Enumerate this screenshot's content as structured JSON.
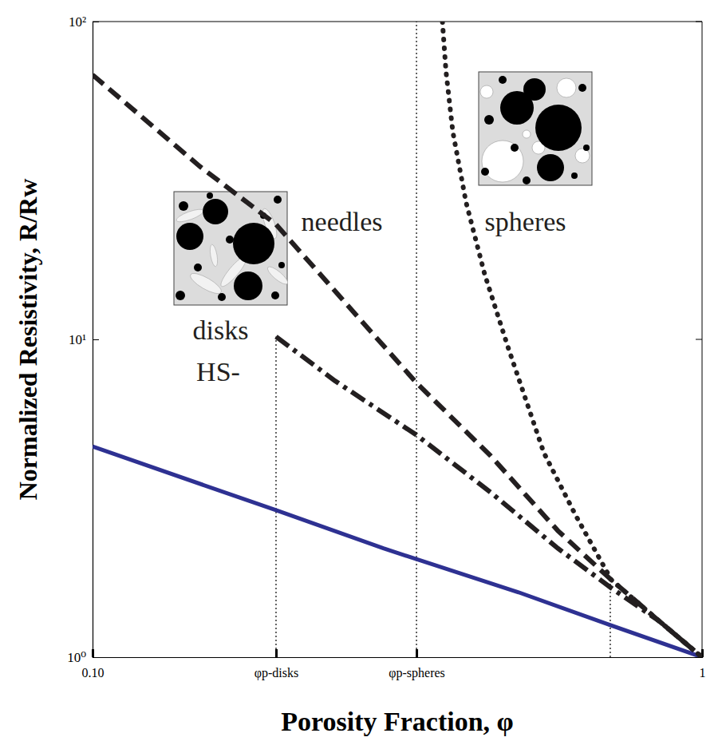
{
  "chart_data": {
    "type": "line",
    "xlabel": "Porosity Fraction, φ",
    "ylabel": "Normalized Resistivity, R/Rw",
    "log": true,
    "xlim": [
      0.1,
      1
    ],
    "ylim": [
      1,
      100
    ],
    "xticks": [
      {
        "value": 0.1,
        "label": "0.10"
      },
      {
        "value": 0.2,
        "label": "φp-disks"
      },
      {
        "value": 0.34,
        "label": "φp-spheres"
      },
      1
    ],
    "yticks": [
      {
        "value": 1,
        "label": "10⁰"
      },
      {
        "value": 10,
        "label": "10¹"
      },
      {
        "value": 100,
        "label": "10²"
      }
    ],
    "series": [
      {
        "color": "#2e3192",
        "line_style": "solid",
        "x": [
          0.1,
          0.2,
          0.3,
          0.5,
          0.7,
          1
        ],
        "values": [
          4.6,
          2.9,
          2.2,
          1.6,
          1.27,
          1.0
        ]
      },
      {
        "color": "#231f20",
        "line_style": "dash-dot",
        "x": [
          0.2,
          0.25,
          0.34,
          0.45,
          0.58,
          0.71,
          0.85,
          1
        ],
        "values": [
          10.2,
          7.4,
          5.0,
          3.3,
          2.2,
          1.65,
          1.3,
          1.0
        ]
      },
      {
        "color": "#231f20",
        "line_style": "dashed",
        "x": [
          0.1,
          0.15,
          0.2,
          0.27,
          0.34,
          0.45,
          0.58,
          0.71,
          0.85,
          1
        ],
        "values": [
          68,
          35,
          23,
          12,
          7.3,
          4.3,
          2.5,
          1.75,
          1.3,
          1.0
        ]
      },
      {
        "color": "#231f20",
        "line_style": "dotted",
        "x": [
          0.375,
          0.38,
          0.39,
          0.41,
          0.44,
          0.48,
          0.55,
          0.62,
          0.71,
          0.85,
          1
        ],
        "values": [
          100,
          70,
          45,
          27,
          16,
          9.5,
          4.4,
          2.8,
          1.75,
          1.3,
          1.0
        ]
      }
    ],
    "vlines": [
      {
        "x": 0.2,
        "y": 10.2
      },
      {
        "x": 0.34,
        "y": 100
      },
      {
        "x": 0.707,
        "y": 1.75
      }
    ],
    "annotations": [
      {
        "text": "needles",
        "x": 0.22,
        "y": 22
      },
      {
        "text": "disks",
        "x": 0.146,
        "y": 10
      },
      {
        "text": "HS-",
        "x": 0.148,
        "y": 7.4
      },
      {
        "text": "spheres",
        "x": 0.44,
        "y": 22
      }
    ]
  }
}
